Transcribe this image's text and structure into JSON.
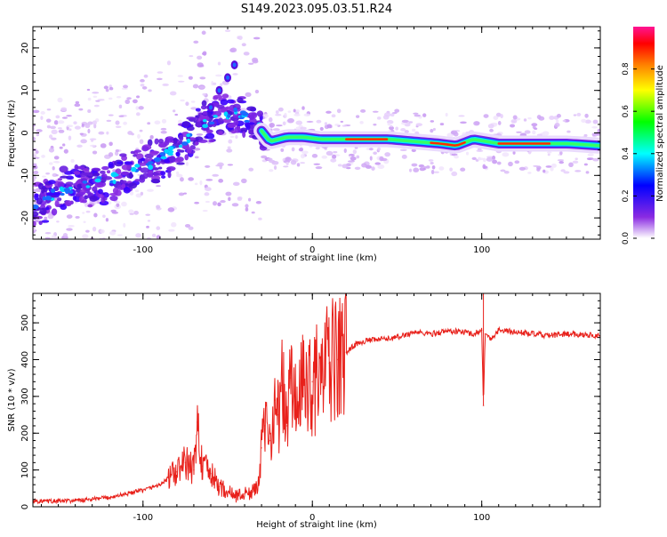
{
  "figure": {
    "title": "S149.2023.095.03.51.R24"
  },
  "chart_data": [
    {
      "type": "heatmap",
      "xlabel": "Height of straight line (km)",
      "ylabel": "Frequency (Hz)",
      "xlim": [
        -165,
        170
      ],
      "ylim": [
        -25,
        25
      ],
      "x_ticks": [
        -100,
        0,
        100
      ],
      "x_tick_labels": [
        "-100",
        "0",
        "100"
      ],
      "y_ticks": [
        -20,
        -10,
        0,
        10,
        20
      ],
      "y_tick_labels": [
        "-20",
        "-10",
        "0",
        "10",
        "20"
      ],
      "colorbar": {
        "label": "Normalized spectral amplitude",
        "range": [
          0,
          1
        ],
        "ticks": [
          0.0,
          0.2,
          0.4,
          0.6,
          0.8
        ],
        "tick_labels": [
          "0.0",
          "0.2",
          "0.4",
          "0.6",
          "0.8"
        ],
        "colors": [
          "#ffffff",
          "#8a2be2",
          "#0000ff",
          "#00ffff",
          "#00ff00",
          "#ffff00",
          "#ff8000",
          "#ff0000",
          "#ff1493"
        ]
      },
      "ridge": {
        "x": [
          -165,
          -150,
          -135,
          -120,
          -105,
          -90,
          -75,
          -65,
          -55,
          -45,
          -35,
          -25,
          -15,
          -5,
          5,
          15,
          25,
          45,
          60,
          75,
          85,
          95,
          110,
          130,
          150,
          170
        ],
        "y": [
          -17,
          -14,
          -12,
          -11,
          -9,
          -6,
          -2,
          2,
          4,
          5,
          3,
          -2,
          -1,
          -1,
          -1.5,
          -1.5,
          -1.5,
          -1.5,
          -2,
          -2.5,
          -3,
          -1.5,
          -2.5,
          -2.5,
          -2.5,
          -3
        ]
      },
      "secondary_ridge": {
        "x": [
          -60,
          -55,
          -50,
          -46
        ],
        "y": [
          6,
          10,
          13,
          16
        ]
      }
    },
    {
      "type": "line",
      "xlabel": "Height of straight line (km)",
      "ylabel": "SNR (10 * v/v)",
      "xlim": [
        -165,
        170
      ],
      "ylim": [
        0,
        580
      ],
      "x_ticks": [
        -100,
        0,
        100
      ],
      "x_tick_labels": [
        "-100",
        "0",
        "100"
      ],
      "y_ticks": [
        0,
        100,
        200,
        300,
        400,
        500
      ],
      "y_tick_labels": [
        "0",
        "100",
        "200",
        "300",
        "400",
        "500"
      ],
      "line_color": "#e8201a",
      "series": [
        {
          "x": [
            -165,
            -150,
            -135,
            -120,
            -110,
            -100,
            -90,
            -80,
            -75,
            -70,
            -68,
            -65,
            -60,
            -55,
            -50,
            -45,
            -40,
            -35,
            -32,
            -30,
            -28,
            -25,
            -22,
            -20,
            -18,
            -15,
            -13,
            -10,
            -5,
            0,
            5,
            10,
            15,
            20,
            25,
            30,
            40,
            50,
            60,
            70,
            80,
            90,
            95,
            100,
            101,
            102,
            105,
            110,
            120,
            130,
            140,
            150,
            160,
            170
          ],
          "y": [
            15,
            15,
            18,
            25,
            35,
            45,
            60,
            95,
            120,
            100,
            230,
            110,
            90,
            55,
            40,
            30,
            35,
            40,
            70,
            160,
            220,
            180,
            290,
            250,
            330,
            220,
            350,
            280,
            330,
            340,
            350,
            390,
            400,
            420,
            440,
            450,
            455,
            460,
            475,
            470,
            478,
            475,
            470,
            480,
            275,
            470,
            455,
            480,
            475,
            470,
            465,
            470,
            468,
            465
          ]
        }
      ]
    }
  ]
}
